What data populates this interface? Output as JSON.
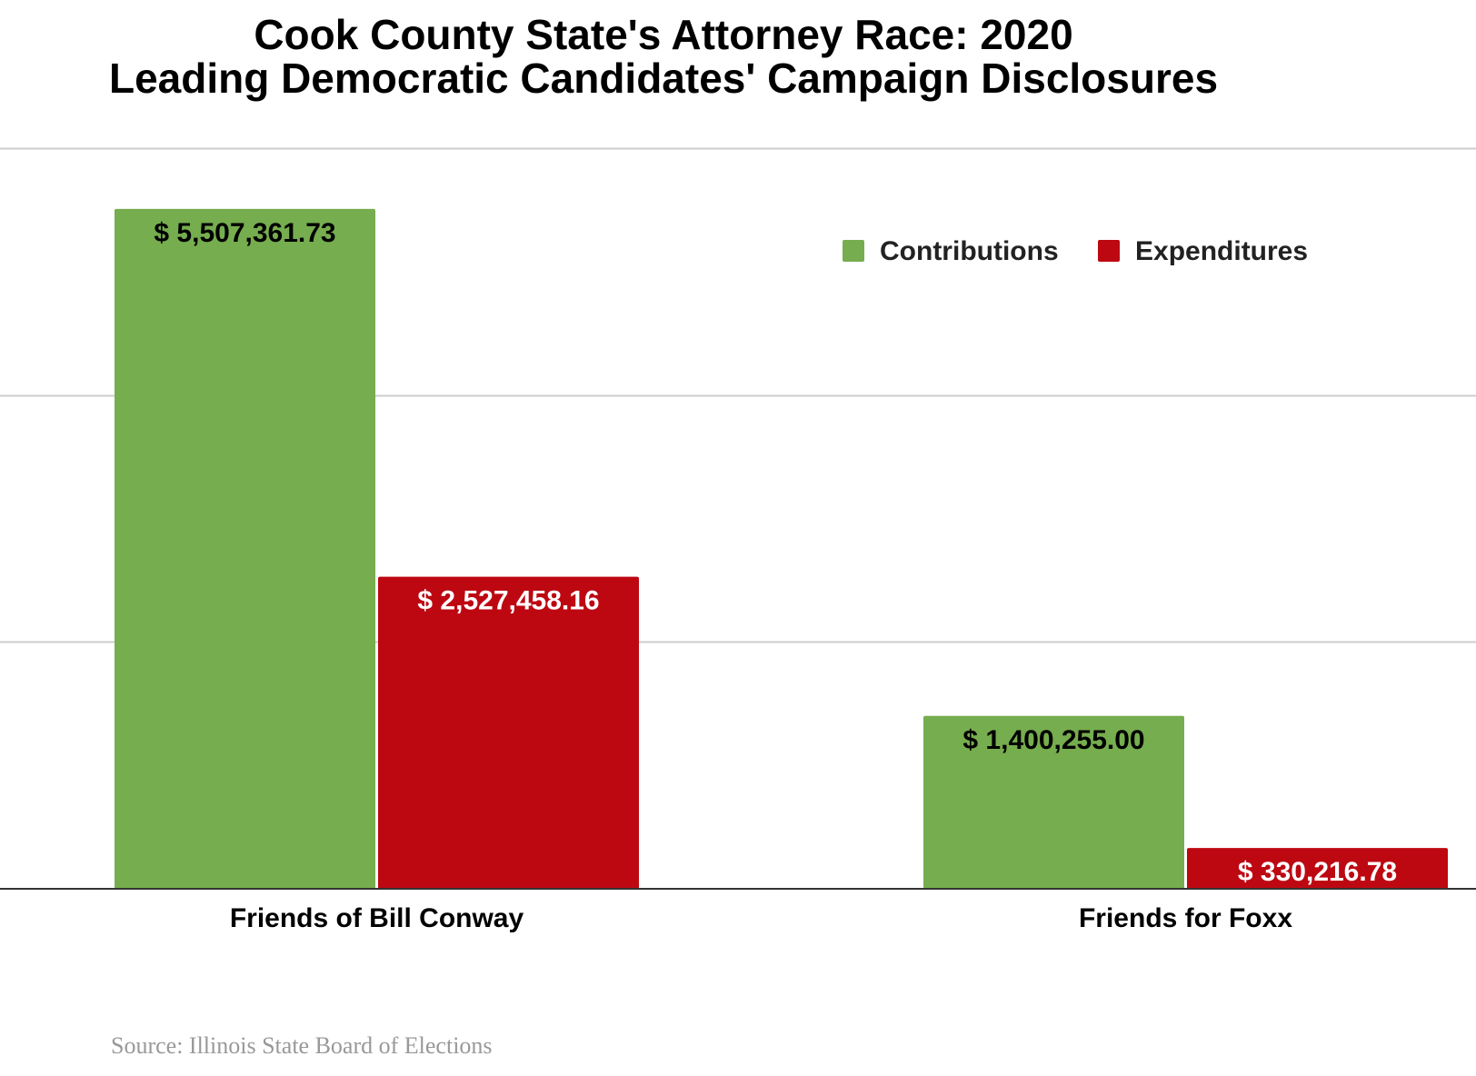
{
  "chart_data": {
    "type": "bar",
    "title": [
      "Cook County State's Attorney Race: 2020",
      "Leading Democratic Candidates' Campaign Disclosures"
    ],
    "categories": [
      "Friends of Bill Conway",
      "Friends for Foxx"
    ],
    "series": [
      {
        "name": "Contributions",
        "color": "#76ad4e",
        "label_color": "#000000",
        "values": [
          5507361.73,
          1400255.0
        ],
        "labels": [
          "$ 5,507,361.73",
          "$ 1,400,255.00"
        ]
      },
      {
        "name": "Expenditures",
        "color": "#bd0812",
        "label_color": "#ffffff",
        "values": [
          2527458.16,
          330216.78
        ],
        "labels": [
          "$ 2,527,458.16",
          "$ 330,216.78"
        ]
      }
    ],
    "ylim": [
      0,
      6000000
    ],
    "gridlines": [
      2000000,
      4000000,
      6000000
    ],
    "legend_position": "top-right",
    "grid": true,
    "source": "Source: Illinois State Board of Elections"
  }
}
